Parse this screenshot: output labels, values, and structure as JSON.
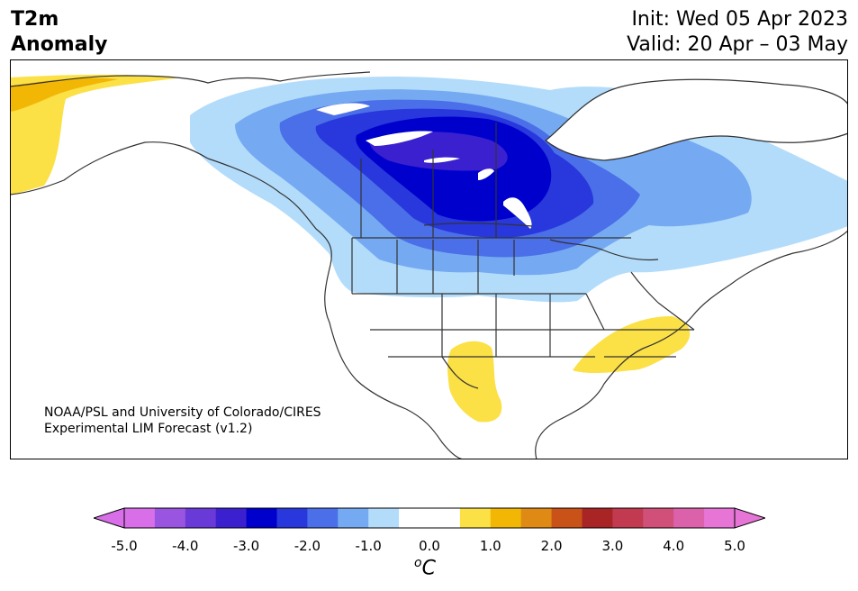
{
  "title": {
    "left_line1": "T2m",
    "left_line2": "Anomaly",
    "right_line1": "Init: Wed 05 Apr 2023",
    "right_line2": "Valid: 20 Apr – 03 May"
  },
  "credit": {
    "line1": "NOAA/PSL and University of Colorado/CIRES",
    "line2": "Experimental LIM Forecast (v1.2)"
  },
  "colorbar": {
    "unit_base": "C",
    "unit_sup": "o",
    "tick_labels": [
      "-5.0",
      "-4.0",
      "-3.0",
      "-2.0",
      "-1.0",
      "0.0",
      "1.0",
      "2.0",
      "3.0",
      "4.0",
      "5.0"
    ],
    "colors": [
      "#d86fe8",
      "#9a55e0",
      "#6a3ad8",
      "#3b20cf",
      "#0000cc",
      "#2838dc",
      "#4b6fe8",
      "#75aaf2",
      "#b3dcfb",
      "#ffffff",
      "#ffffff",
      "#fbe046",
      "#f2b705",
      "#de8a14",
      "#c95218",
      "#a92424",
      "#c23a50",
      "#d0507a",
      "#db62aa",
      "#e775d6"
    ],
    "extend_low_color": "#d86fe8",
    "extend_high_color": "#e775d6"
  },
  "map": {
    "field": "2m temperature anomaly",
    "features": [
      "cold anomaly over central Canada (peak -3.0 to -3.5 °C near Hudson Bay region)",
      "weak warm anomaly over Alaska",
      "weak warm anomaly over Texas/Mexico",
      "weak warm anomaly over southeastern US"
    ]
  }
}
